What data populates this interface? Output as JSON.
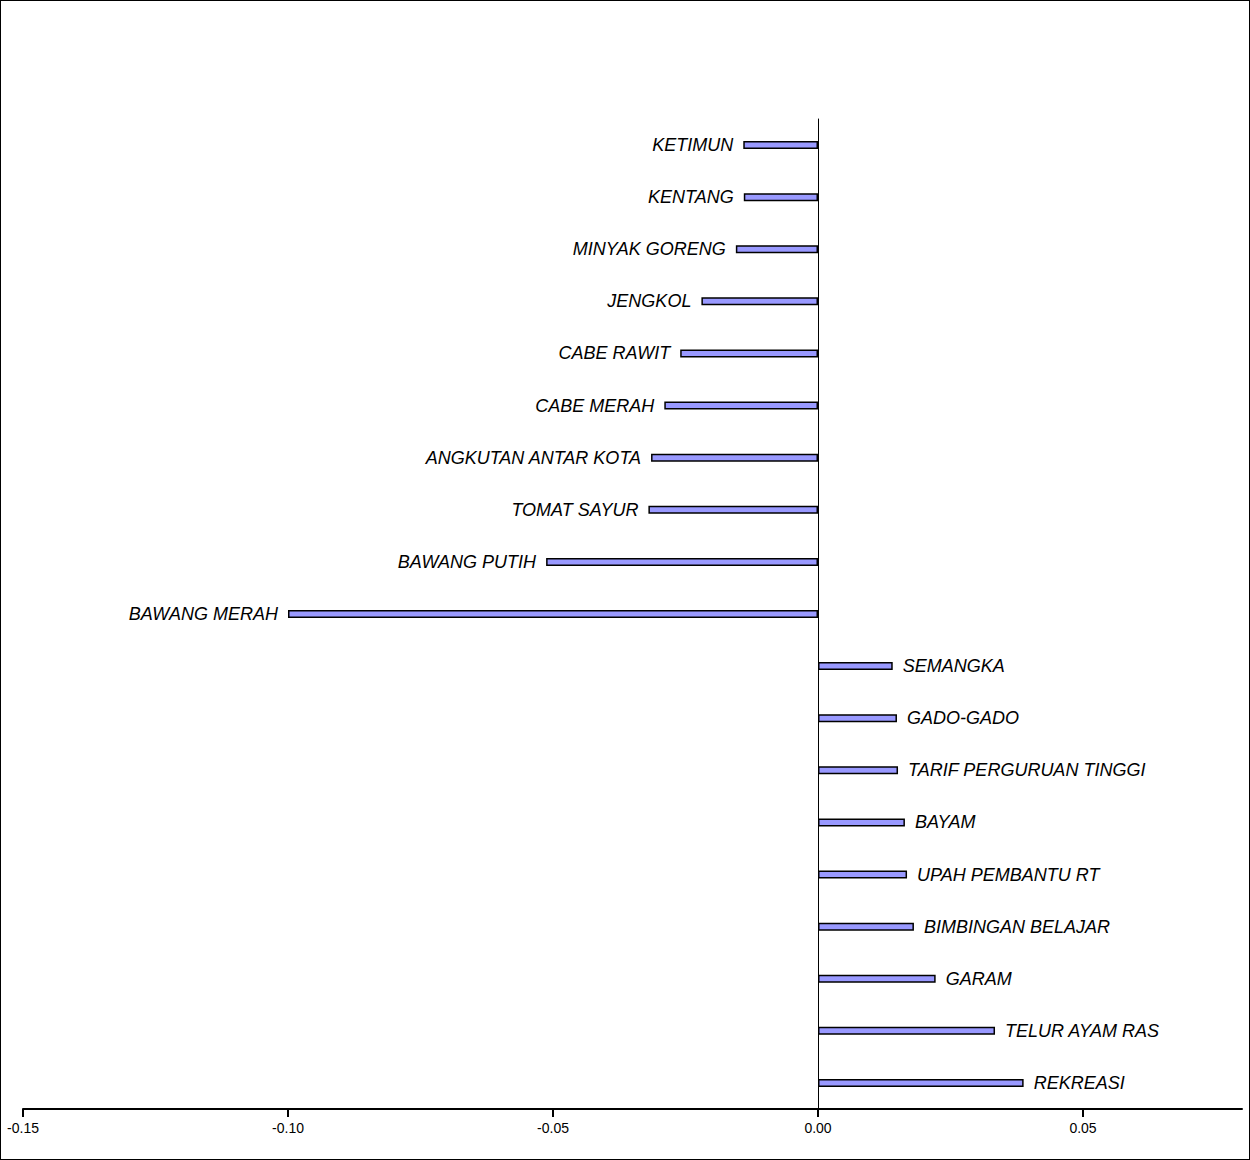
{
  "chart_data": {
    "type": "bar",
    "orientation": "horizontal",
    "categories": [
      "KETIMUN",
      "KENTANG",
      "MINYAK GORENG",
      "JENGKOL",
      "CABE RAWIT",
      "CABE MERAH",
      "ANGKUTAN ANTAR KOTA",
      "TOMAT SAYUR",
      "BAWANG PUTIH",
      "BAWANG MERAH",
      "SEMANGKA",
      "GADO-GADO",
      "TARIF PERGURUAN TINGGI",
      "BAYAM",
      "UPAH PEMBANTU RT",
      "BIMBINGAN BELAJAR",
      "GARAM",
      "TELUR AYAM RAS",
      "REKREASI"
    ],
    "values": [
      -0.0141,
      -0.014,
      -0.0155,
      -0.022,
      -0.026,
      -0.029,
      -0.0315,
      -0.032,
      -0.0513,
      -0.1,
      0.0141,
      0.0149,
      0.0151,
      0.0164,
      0.0168,
      0.0181,
      0.0222,
      0.0334,
      0.0388
    ],
    "color": "#9999ff",
    "xlim": [
      -0.15,
      0.08
    ],
    "xticks": [
      {
        "value": -0.15,
        "label": "-0.15"
      },
      {
        "value": -0.1,
        "label": "-0.10"
      },
      {
        "value": -0.05,
        "label": "-0.05"
      },
      {
        "value": 0,
        "label": "0.00"
      },
      {
        "value": 0.05,
        "label": "0.05"
      }
    ],
    "grid": false
  }
}
